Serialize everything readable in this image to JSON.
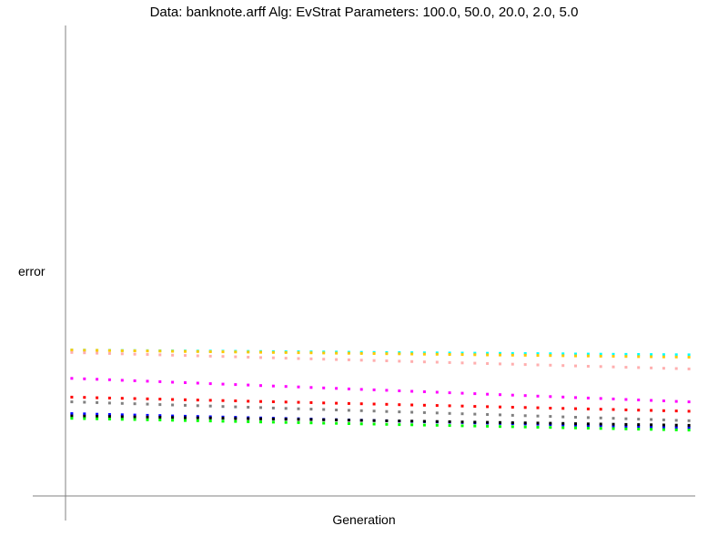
{
  "chart_data": {
    "type": "scatter",
    "title": "Data: banknote.arff    Alg: EvStrat    Parameters: 100.0, 50.0, 20.0, 2.0, 5.0",
    "xlabel": "Generation",
    "ylabel": "error",
    "xlim": [
      0,
      50
    ],
    "ylim": [
      0,
      1
    ],
    "grid": false,
    "legend": "none",
    "generations": 50,
    "series": [
      {
        "color": "#00ffff",
        "values": [
          0.31,
          0.3
        ]
      },
      {
        "color": "#ffc800",
        "values": [
          0.31,
          0.295
        ]
      },
      {
        "color": "#ffafaf",
        "values": [
          0.305,
          0.27
        ]
      },
      {
        "color": "#ff00ff",
        "values": [
          0.25,
          0.2
        ]
      },
      {
        "color": "#ff0000",
        "values": [
          0.21,
          0.18
        ]
      },
      {
        "color": "#0000ff",
        "values": [
          0.175,
          0.145
        ]
      },
      {
        "color": "#000000",
        "values": [
          0.17,
          0.15
        ]
      },
      {
        "color": "#808080",
        "values": [
          0.2,
          0.16
        ]
      },
      {
        "color": "#00ff00",
        "values": [
          0.165,
          0.14
        ]
      }
    ]
  }
}
